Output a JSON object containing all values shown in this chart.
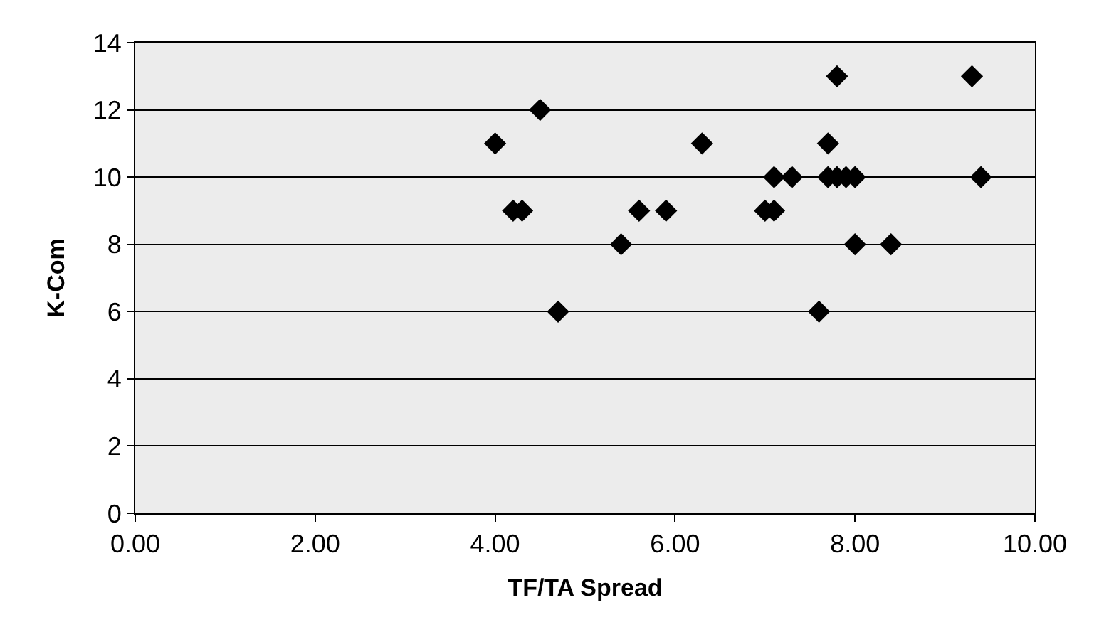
{
  "chart_data": {
    "type": "scatter",
    "xlabel": "TF/TA Spread",
    "ylabel": "K-Com",
    "x": [
      4.0,
      4.2,
      4.3,
      4.5,
      4.7,
      5.4,
      5.6,
      5.9,
      6.3,
      7.0,
      7.1,
      7.1,
      7.3,
      7.6,
      7.7,
      7.7,
      7.8,
      7.8,
      7.9,
      8.0,
      8.0,
      8.4,
      9.3,
      9.4
    ],
    "series": [
      {
        "color": "#000000",
        "values": [
          11,
          9,
          9,
          12,
          6,
          8,
          9,
          9,
          11,
          9,
          9,
          10,
          10,
          6,
          11,
          10,
          13,
          10,
          10,
          10,
          8,
          8,
          13,
          10
        ]
      }
    ],
    "xlim": [
      0,
      10
    ],
    "xticks": [
      {
        "value": 0,
        "label": "0.00"
      },
      {
        "value": 2,
        "label": "2.00"
      },
      {
        "value": 4,
        "label": "4.00"
      },
      {
        "value": 6,
        "label": "6.00"
      },
      {
        "value": 8,
        "label": "8.00"
      },
      {
        "value": 10,
        "label": "10.00"
      }
    ],
    "ylim": [
      0,
      14
    ],
    "yticks": [
      0,
      2,
      4,
      6,
      8,
      10,
      12,
      14
    ],
    "grid": "y",
    "marker": "diamond",
    "legend": false
  }
}
